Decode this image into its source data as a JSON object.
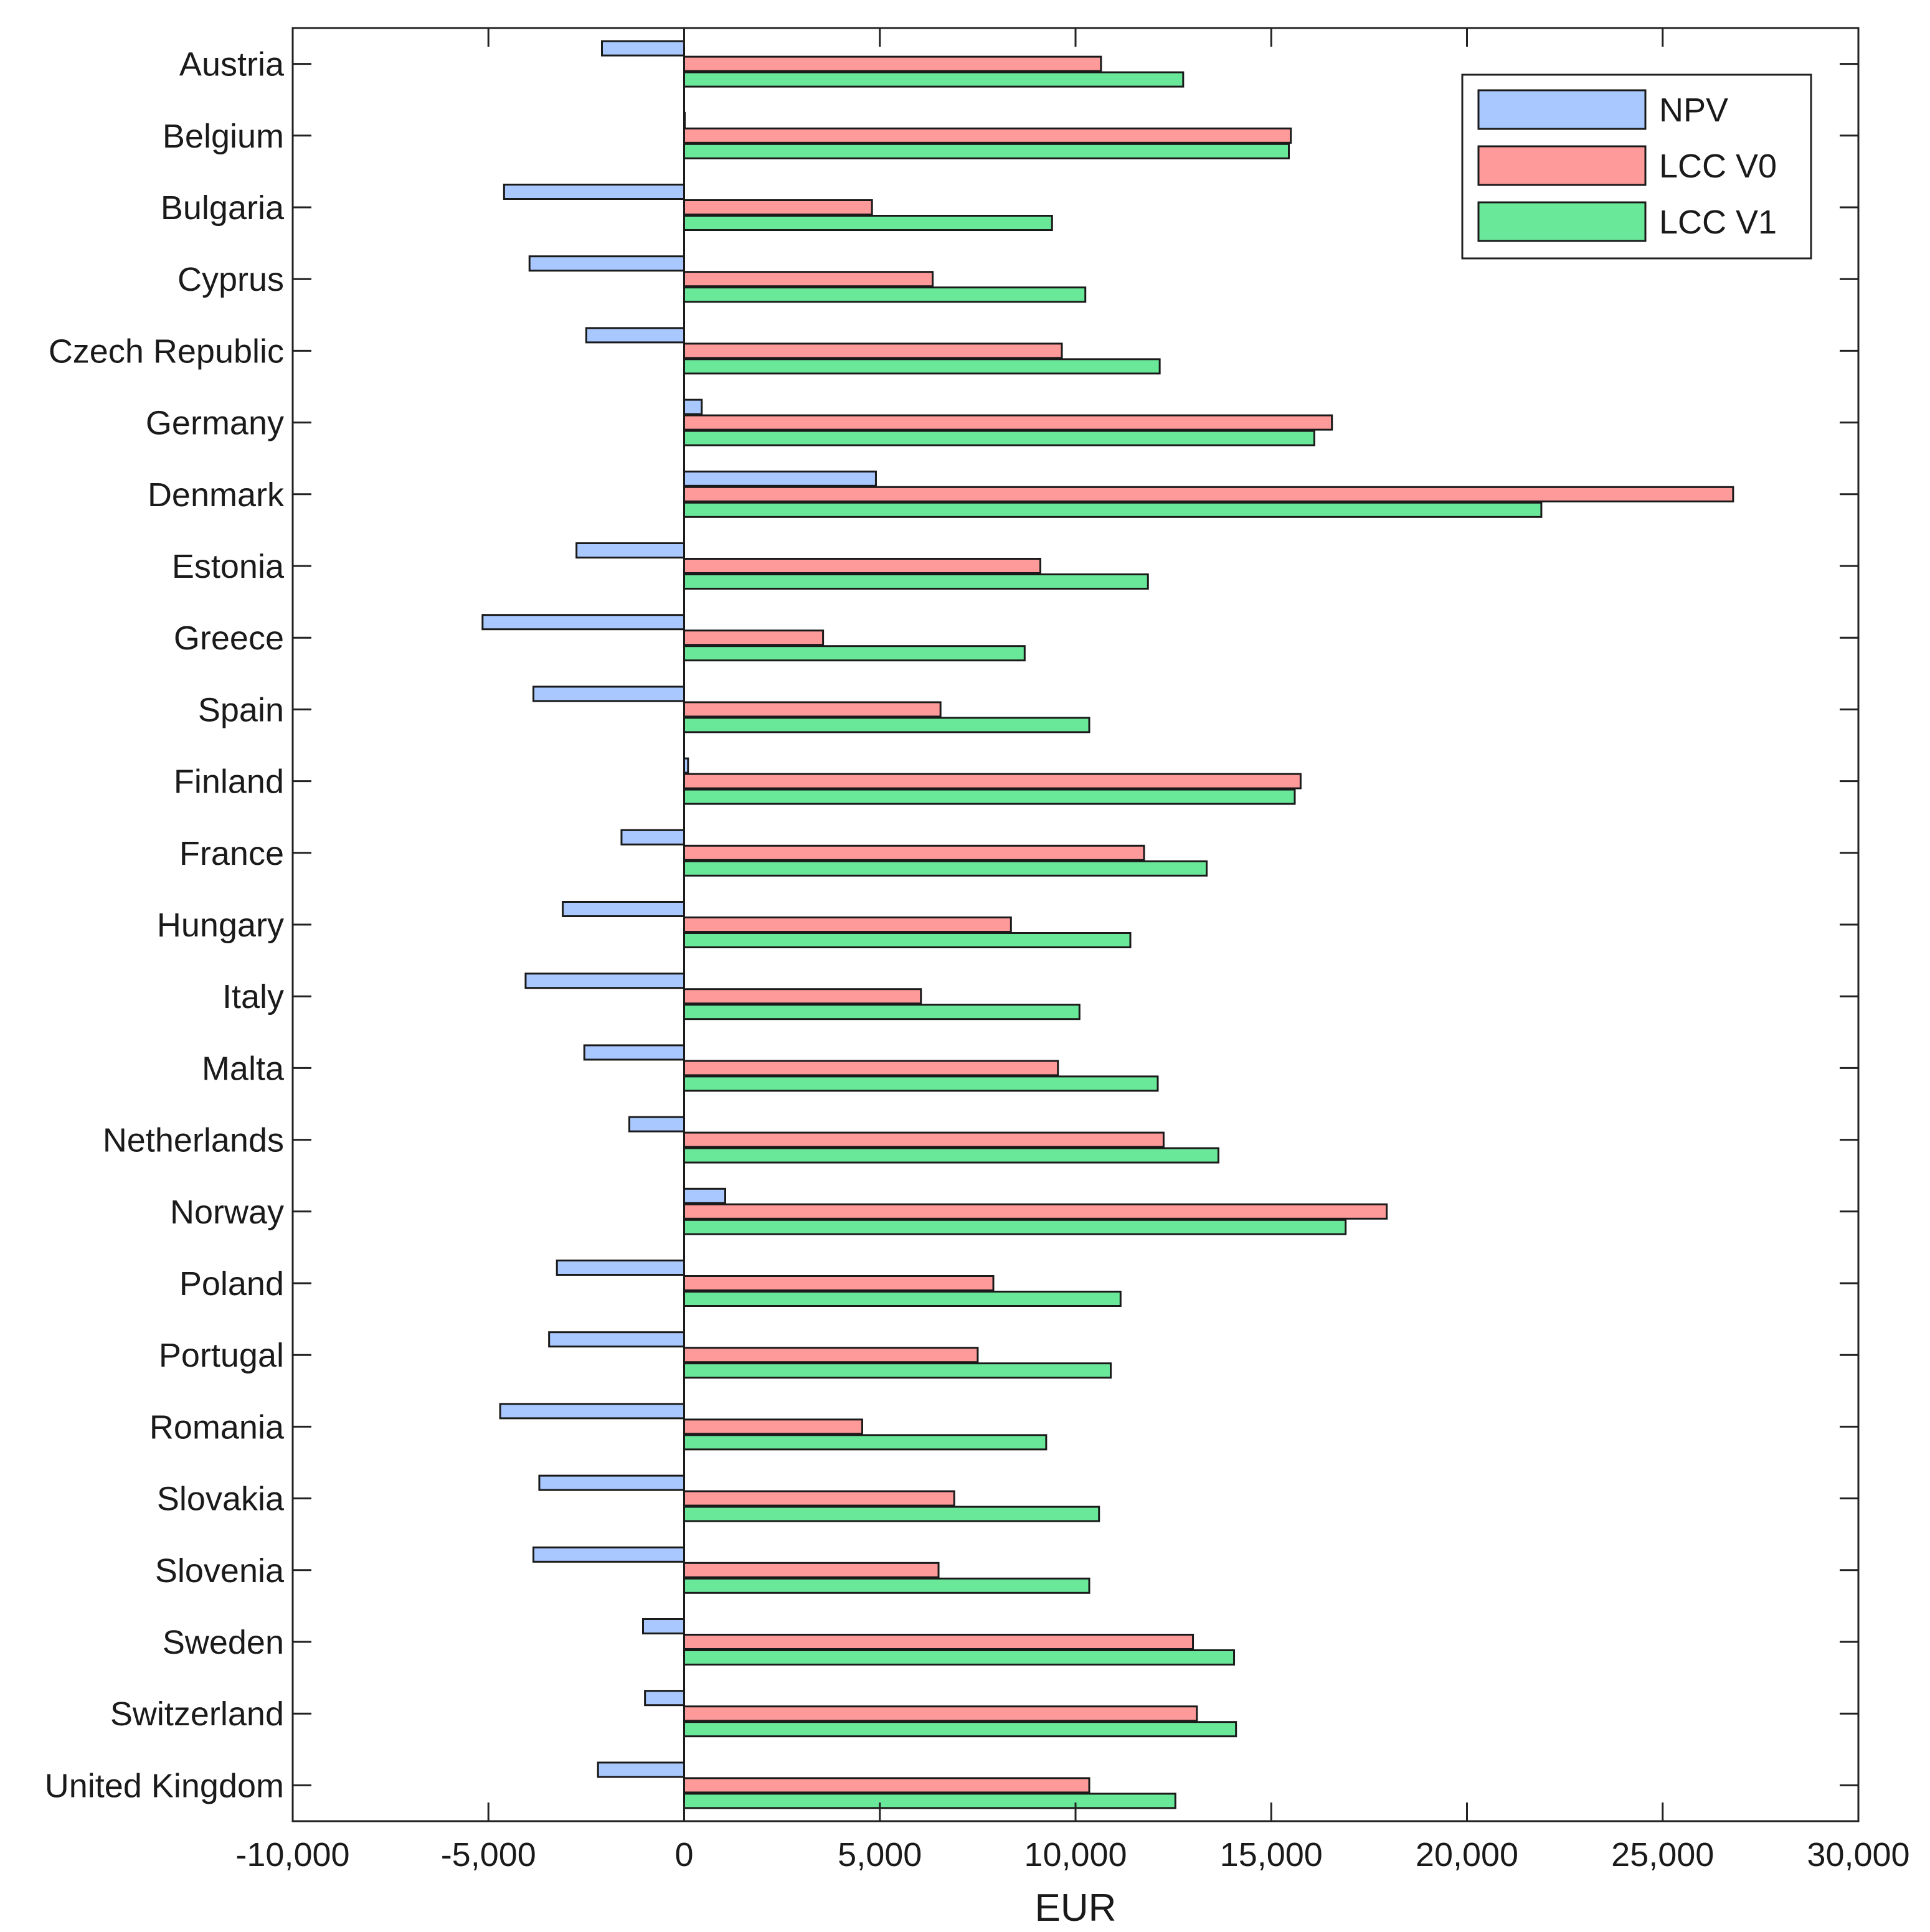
{
  "chart_data": {
    "type": "bar",
    "orientation": "horizontal",
    "xlabel": "EUR",
    "ylabel": "",
    "title": "",
    "xlim": [
      -10000,
      30000
    ],
    "xticks": [
      -10000,
      -5000,
      0,
      5000,
      10000,
      15000,
      20000,
      25000,
      30000
    ],
    "xtick_labels": [
      "-10,000",
      "-5,000",
      "0",
      "5,000",
      "10,000",
      "15,000",
      "20,000",
      "25,000",
      "30,000"
    ],
    "grid": false,
    "legend_position": "top-right",
    "categories": [
      "Austria",
      "Belgium",
      "Bulgaria",
      "Cyprus",
      "Czech Republic",
      "Germany",
      "Denmark",
      "Estonia",
      "Greece",
      "Spain",
      "Finland",
      "France",
      "Hungary",
      "Italy",
      "Malta",
      "Netherlands",
      "Norway",
      "Poland",
      "Portugal",
      "Romania",
      "Slovakia",
      "Slovenia",
      "Sweden",
      "Switzerland",
      "United Kingdom"
    ],
    "series": [
      {
        "name": "NPV",
        "color": "#a8c8ff",
        "values": [
          -2100,
          0,
          -4600,
          -3950,
          -2500,
          450,
          4900,
          -2750,
          -5150,
          -3850,
          100,
          -1600,
          -3100,
          -4050,
          -2550,
          -1400,
          1050,
          -3250,
          -3450,
          -4700,
          -3700,
          -3850,
          -1050,
          -1000,
          -2200
        ]
      },
      {
        "name": "LCC V0",
        "color": "#ff9a9a",
        "values": [
          10650,
          15500,
          4800,
          6350,
          9650,
          16550,
          26800,
          9100,
          3550,
          6550,
          15750,
          11750,
          8350,
          6050,
          9550,
          12250,
          17950,
          7900,
          7500,
          4550,
          6900,
          6500,
          13000,
          13100,
          10350
        ]
      },
      {
        "name": "LCC V1",
        "color": "#6ae89a",
        "values": [
          12750,
          15450,
          9400,
          10250,
          12150,
          16100,
          21900,
          11850,
          8700,
          10350,
          15600,
          13350,
          11400,
          10100,
          12100,
          13650,
          16900,
          11150,
          10900,
          9250,
          10600,
          10350,
          14050,
          14100,
          12550
        ]
      }
    ]
  }
}
